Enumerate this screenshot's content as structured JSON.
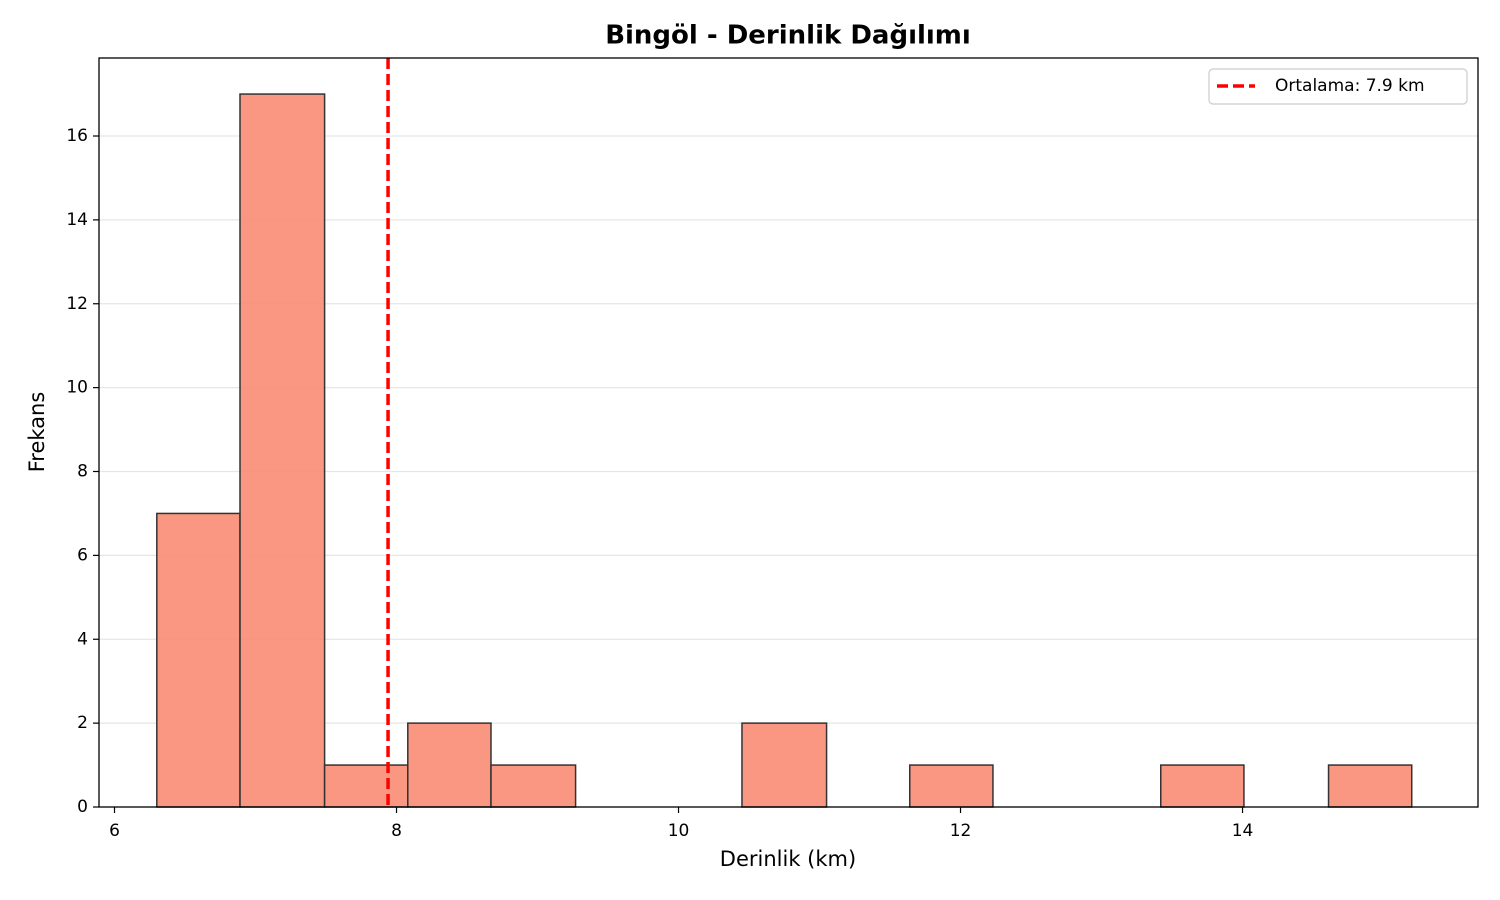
{
  "chart_data": {
    "type": "histogram",
    "title": "Bingöl - Derinlik Dağılımı",
    "x_label": "Derinlik (km)",
    "y_label": "Frekans",
    "bins": [
      6.3,
      6.89,
      7.49,
      8.08,
      8.67,
      9.27,
      9.86,
      10.45,
      11.05,
      11.64,
      12.23,
      12.83,
      13.42,
      14.01,
      14.61,
      15.2
    ],
    "counts": [
      7,
      17,
      1,
      2,
      1,
      0,
      0,
      2,
      0,
      1,
      0,
      0,
      1,
      0,
      1
    ],
    "color": "#fa8c74",
    "edge_color": "#333333",
    "xlim": [
      5.89,
      15.67
    ],
    "xticks": [
      6,
      8,
      10,
      12,
      14
    ],
    "ylim": [
      0,
      17.86
    ],
    "yticks": [
      0,
      2,
      4,
      6,
      8,
      10,
      12,
      14,
      16
    ],
    "grid": true,
    "legend": "upper right",
    "mean_line": {
      "value": 7.94,
      "label": "Ortalama: 7.9 km",
      "color": "#ff0000"
    }
  }
}
